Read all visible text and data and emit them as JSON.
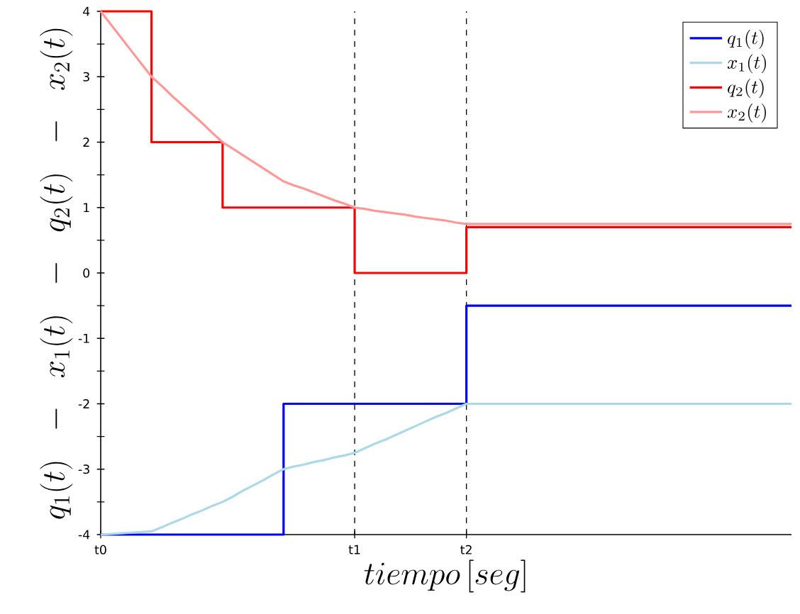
{
  "chart_data": {
    "type": "line",
    "xlabel": "tiempo\\,[seg]",
    "ylabel": "q_1(t)\\ \\ -\\ \\ x_1(t)\\ \\ -\\ \\ q_2(t)\\ \\ -\\ \\ x_2(t)",
    "categories": [
      "t0",
      null,
      null,
      null,
      null,
      null,
      null,
      null,
      null,
      null,
      null,
      null,
      null,
      null,
      null,
      null,
      null,
      null,
      null,
      null,
      null,
      null,
      null,
      null,
      null,
      "t1",
      null,
      null,
      null,
      null,
      null,
      null,
      null,
      null,
      null,
      null,
      "t2",
      null,
      null,
      null,
      null,
      null,
      null,
      null,
      null,
      null,
      null,
      null,
      null,
      null,
      null,
      null,
      null,
      null,
      null,
      null,
      null,
      null,
      null,
      null,
      null,
      null,
      null,
      null,
      null,
      null,
      null,
      null,
      null
    ],
    "ylim": [
      -4,
      4
    ],
    "yticks": [
      -4,
      {
        "value": -3.5,
        "label": null
      },
      -3,
      {
        "value": -2.5,
        "label": null
      },
      -2,
      {
        "value": -1.5,
        "label": null
      },
      -1,
      {
        "value": -0.5,
        "label": null
      },
      0,
      {
        "value": 0.5,
        "label": null
      },
      1,
      {
        "value": 1.5,
        "label": null
      },
      2,
      {
        "value": 2.5,
        "label": null
      },
      3,
      {
        "value": 3.5,
        "label": null
      },
      4
    ],
    "legend": "top right",
    "series": [
      {
        "name": "q_1(t)",
        "type": "step",
        "color": "#0000ff",
        "values": [
          -4,
          -4,
          -4,
          -4,
          -4,
          -4,
          -4,
          -4,
          -4,
          -4,
          -4,
          -4,
          -4,
          -4,
          -4,
          -4,
          -4,
          -4,
          -2,
          -2,
          -2,
          -2,
          -2,
          -2,
          -2,
          -2,
          -2,
          -2,
          -2,
          -2,
          -2,
          -2,
          -2,
          -2,
          -2,
          -2,
          -0.5,
          -0.5,
          -0.5,
          -0.5,
          -0.5,
          -0.5,
          -0.5,
          -0.5,
          -0.5,
          -0.5,
          -0.5,
          -0.5,
          -0.5,
          -0.5,
          -0.5,
          -0.5,
          -0.5,
          -0.5,
          -0.5,
          -0.5,
          -0.5,
          -0.5,
          -0.5,
          -0.5,
          -0.5,
          -0.5,
          -0.5,
          -0.5,
          -0.5,
          -0.5,
          -0.5,
          -0.5,
          -0.5
        ]
      },
      {
        "name": "x_1(t)",
        "type": "line",
        "color": "#add8e6",
        "values": [
          -4,
          -3.99,
          -3.98,
          -3.97,
          -3.96,
          -3.95,
          -3.89,
          -3.82,
          -3.76,
          -3.69,
          -3.63,
          -3.56,
          -3.5,
          -3.42,
          -3.33,
          -3.25,
          -3.17,
          -3.08,
          -3,
          -2.96,
          -2.93,
          -2.89,
          -2.86,
          -2.82,
          -2.79,
          -2.75,
          -2.68,
          -2.61,
          -2.55,
          -2.48,
          -2.41,
          -2.34,
          -2.27,
          -2.2,
          -2.14,
          -2.07,
          -2,
          -2,
          -2,
          -2,
          -2,
          -2,
          -2,
          -2,
          -2,
          -2,
          -2,
          -2,
          -2,
          -2,
          -2,
          -2,
          -2,
          -2,
          -2,
          -2,
          -2,
          -2,
          -2,
          -2,
          -2,
          -2,
          -2,
          -2,
          -2,
          -2,
          -2,
          -2,
          -2
        ]
      },
      {
        "name": "q_2(t)",
        "type": "step",
        "color": "#ff0000",
        "values": [
          4,
          4,
          4,
          4,
          4,
          2,
          2,
          2,
          2,
          2,
          2,
          2,
          1,
          1,
          1,
          1,
          1,
          1,
          1,
          1,
          1,
          1,
          1,
          1,
          1,
          0,
          0,
          0,
          0,
          0,
          0,
          0,
          0,
          0,
          0,
          0,
          0.7,
          0.7,
          0.7,
          0.7,
          0.7,
          0.7,
          0.7,
          0.7,
          0.7,
          0.7,
          0.7,
          0.7,
          0.7,
          0.7,
          0.7,
          0.7,
          0.7,
          0.7,
          0.7,
          0.7,
          0.7,
          0.7,
          0.7,
          0.7,
          0.7,
          0.7,
          0.7,
          0.7,
          0.7,
          0.7,
          0.7,
          0.7,
          0.7
        ]
      },
      {
        "name": "x_2(t)",
        "type": "line",
        "color": "#ff9999",
        "values": [
          4,
          3.8,
          3.6,
          3.4,
          3.2,
          3,
          2.86,
          2.71,
          2.57,
          2.43,
          2.29,
          2.14,
          2,
          1.9,
          1.8,
          1.7,
          1.6,
          1.5,
          1.4,
          1.34,
          1.29,
          1.23,
          1.17,
          1.11,
          1.06,
          1,
          0.98,
          0.95,
          0.93,
          0.91,
          0.89,
          0.86,
          0.84,
          0.82,
          0.8,
          0.77,
          0.75,
          0.75,
          0.75,
          0.75,
          0.75,
          0.75,
          0.75,
          0.75,
          0.75,
          0.75,
          0.75,
          0.75,
          0.75,
          0.75,
          0.75,
          0.75,
          0.75,
          0.75,
          0.75,
          0.75,
          0.75,
          0.75,
          0.75,
          0.75,
          0.75,
          0.75,
          0.75,
          0.75,
          0.75,
          0.75,
          0.75,
          0.75,
          0.75
        ]
      }
    ],
    "ref_lines": [
      {
        "axis": "x",
        "value": "t1",
        "color": "#000000",
        "line_style": "dashed"
      },
      {
        "axis": "x",
        "value": "t2",
        "color": "#000000",
        "line_style": "dashed"
      }
    ]
  }
}
